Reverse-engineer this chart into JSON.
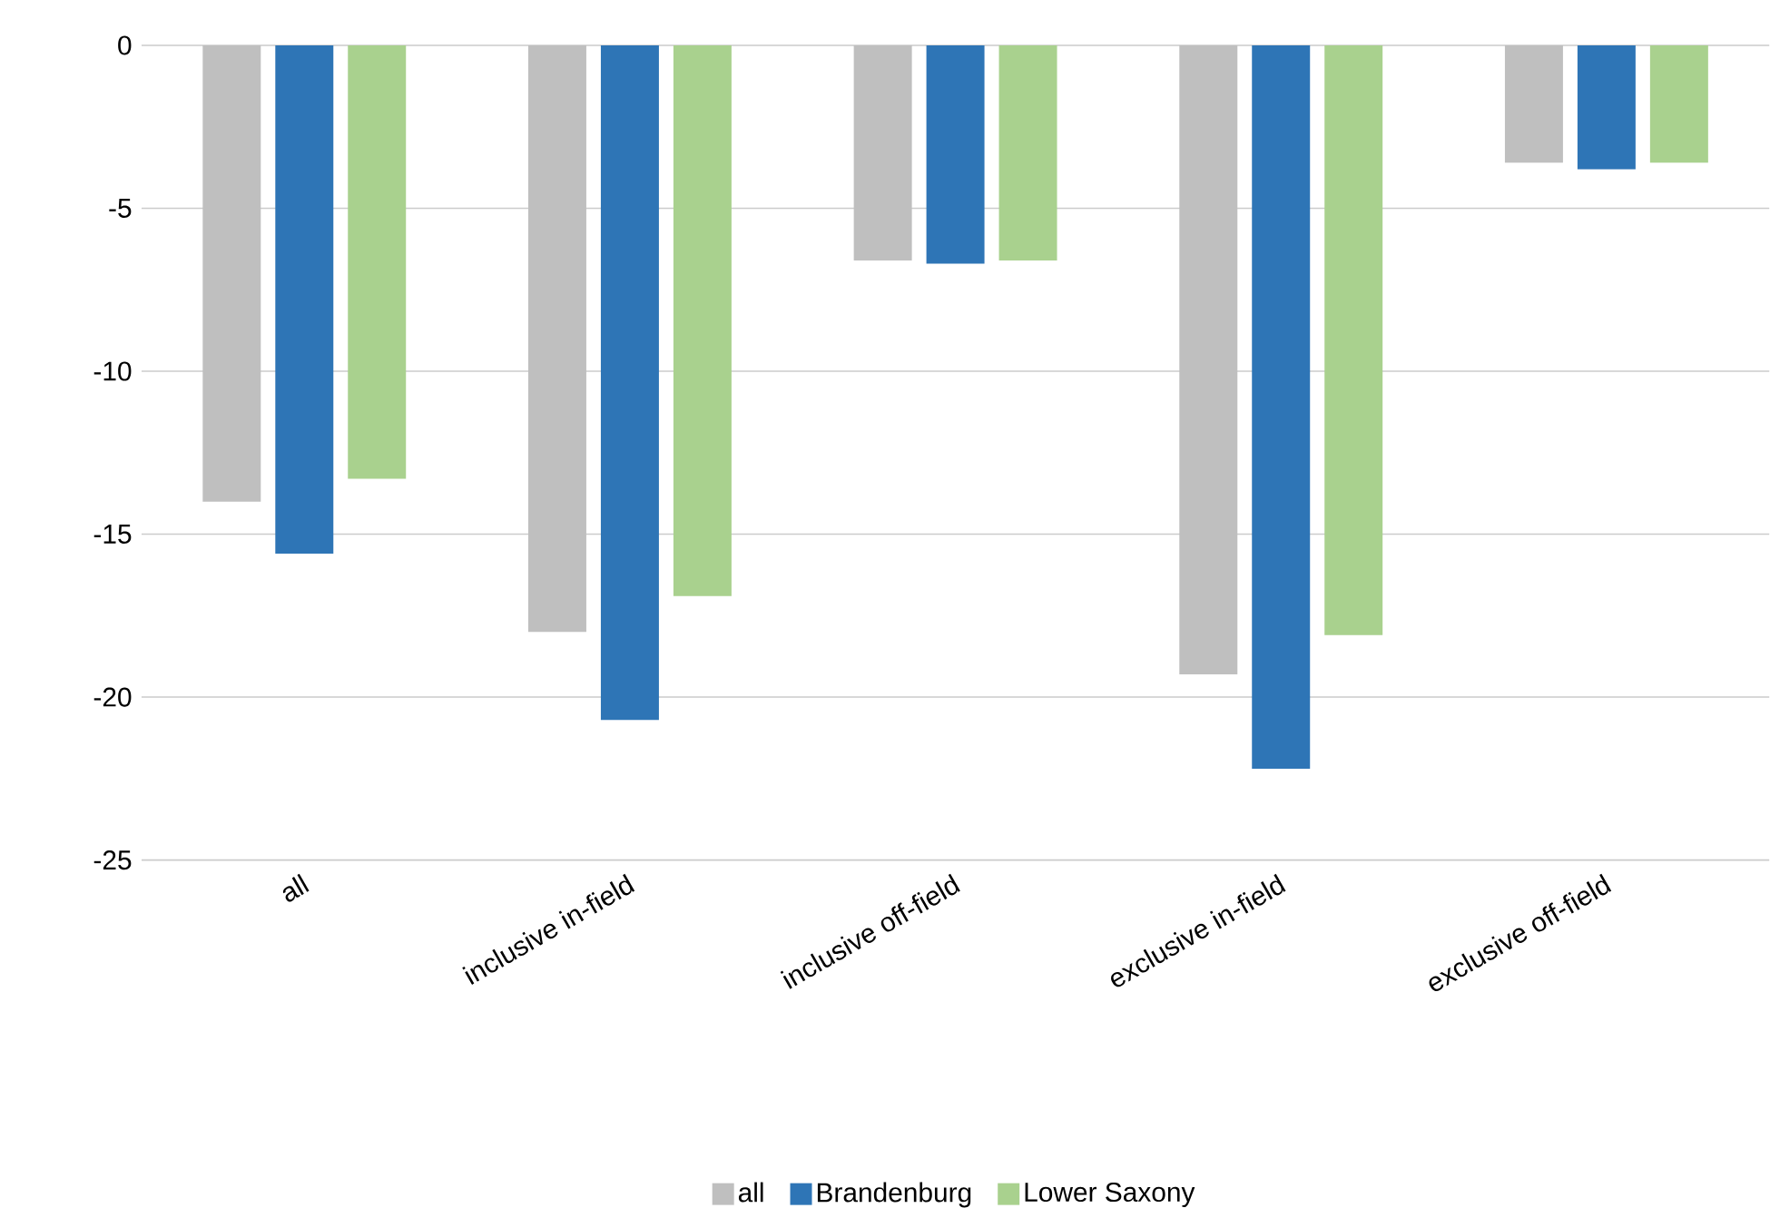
{
  "chart_data": {
    "type": "bar",
    "categories": [
      "all",
      "inclusive in-field",
      "inclusive off-field",
      "exclusive in-field",
      "exclusive off-field"
    ],
    "series": [
      {
        "name": "all",
        "color": "#bfbfbf",
        "values": [
          -14.0,
          -18.0,
          -6.6,
          -19.3,
          -3.6
        ]
      },
      {
        "name": "Brandenburg",
        "color": "#2e75b6",
        "values": [
          -15.6,
          -20.7,
          -6.7,
          -22.2,
          -3.8
        ]
      },
      {
        "name": "Lower Saxony",
        "color": "#a9d18e",
        "values": [
          -13.3,
          -16.9,
          -6.6,
          -18.1,
          -3.6
        ]
      }
    ],
    "ylim": [
      -25,
      0
    ],
    "yticks": [
      -25,
      -20,
      -15,
      -10,
      -5,
      0
    ],
    "grid": "y",
    "legend": "bottom"
  }
}
